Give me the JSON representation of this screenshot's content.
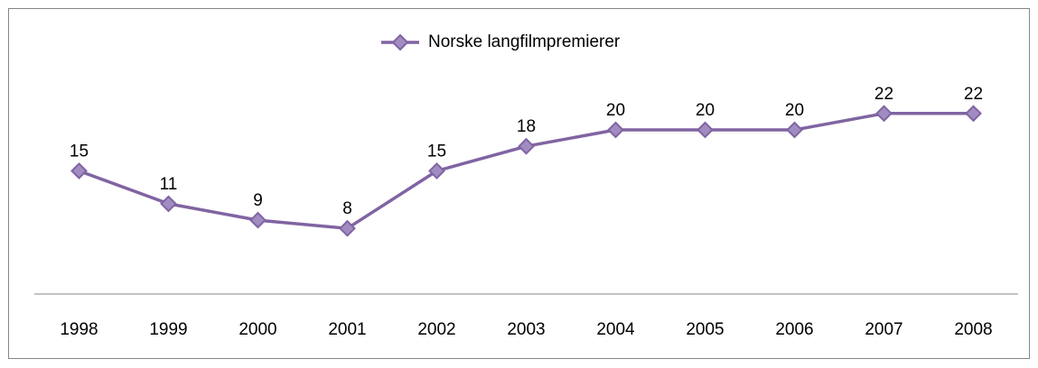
{
  "chart_data": {
    "type": "line",
    "categories": [
      "1998",
      "1999",
      "2000",
      "2001",
      "2002",
      "2003",
      "2004",
      "2005",
      "2006",
      "2007",
      "2008"
    ],
    "series": [
      {
        "name": "Norske langfilmpremierer",
        "color": "#8064a2",
        "values": [
          15,
          11,
          9,
          8,
          15,
          18,
          20,
          20,
          20,
          22,
          22
        ]
      }
    ],
    "ylim": [
      0,
      25
    ],
    "legend": "top",
    "data_labels": true
  }
}
